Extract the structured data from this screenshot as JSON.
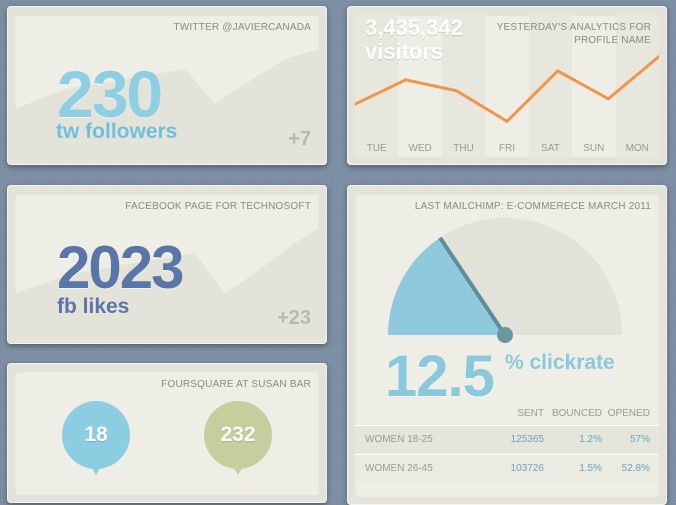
{
  "twitter": {
    "caption": "TWITTER @JAVIERCANADA",
    "count": "230",
    "label": "tw followers",
    "delta": "+7"
  },
  "facebook": {
    "caption": "FACEBOOK  PAGE FOR TECHNOSOFT",
    "count": "2023",
    "label": "fb likes",
    "delta": "+23"
  },
  "foursquare": {
    "caption": "FOURSQUARE AT SUSAN BAR",
    "pins": [
      "18",
      "232"
    ]
  },
  "analytics": {
    "caption_line1": "YESTERDAY'S ANALYTICS FOR",
    "caption_line2": "PROFILE NAME",
    "count": "3,435,342",
    "label": "visitors",
    "line_color": "#f0964a"
  },
  "chart_data": {
    "type": "line",
    "categories": [
      "TUE",
      "WED",
      "THU",
      "FRI",
      "SAT",
      "SUN",
      "MON"
    ],
    "values": [
      22,
      49,
      37,
      3,
      59,
      28,
      75
    ],
    "ylim": [
      0,
      100
    ]
  },
  "mailchimp": {
    "caption": "LAST MAILCHIMP: E-COMMERECE MARCH 2011",
    "clickrate": "12.5",
    "clickrate_label": "% clickrate",
    "clickrate_value": 12.5,
    "gauge_fill_color": "#8fc9dc",
    "columns": [
      "SENT",
      "BOUNCED",
      "OPENED"
    ],
    "rows": [
      {
        "segment": "WOMEN 18-25",
        "sent": "125365",
        "bounced": "1.2%",
        "opened": "57%"
      },
      {
        "segment": "WOMEN 26-45",
        "sent": "103726",
        "bounced": "1.5%",
        "opened": "52.8%"
      }
    ]
  }
}
